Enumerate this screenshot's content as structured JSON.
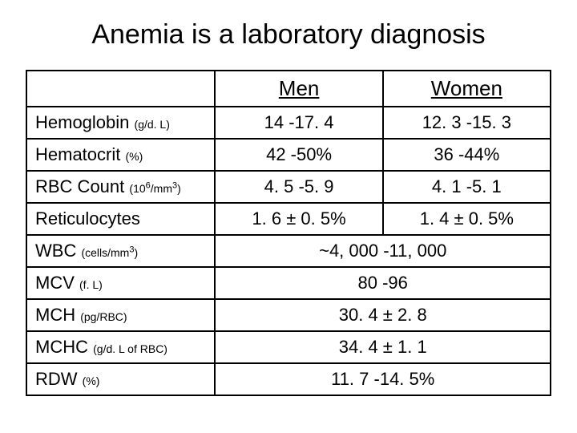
{
  "title": "Anemia is a laboratory diagnosis",
  "headers": {
    "blank": "",
    "men": "Men",
    "women": "Women"
  },
  "rows": {
    "hb": {
      "name": "Hemoglobin",
      "unit": "(g/d. L)",
      "men": "14 -17. 4",
      "women": "12. 3 -15. 3"
    },
    "hct": {
      "name": "Hematocrit",
      "unit": "(%)",
      "men": "42 -50%",
      "women": "36 -44%"
    },
    "rbc": {
      "name": "RBC Count",
      "unit_pre": "(10",
      "unit_sup": "6",
      "unit_mid": "/mm",
      "unit_sup2": "3",
      "unit_post": ")",
      "men": "4. 5 -5. 9",
      "women": "4. 1 -5. 1"
    },
    "retic": {
      "name": "Reticulocytes",
      "unit": "",
      "men": "1. 6 ± 0. 5%",
      "women": "1. 4 ± 0. 5%"
    },
    "wbc": {
      "name": "WBC",
      "unit_pre": "(cells/mm",
      "unit_sup": "3",
      "unit_post": ")",
      "merged": "~4, 000 -11, 000"
    },
    "mcv": {
      "name": "MCV",
      "unit": "(f. L)",
      "merged": "80 -96"
    },
    "mch": {
      "name": "MCH",
      "unit": "(pg/RBC)",
      "merged": "30. 4 ± 2. 8"
    },
    "mchc": {
      "name": "MCHC",
      "unit": "(g/d. L of RBC)",
      "merged": "34. 4 ± 1. 1"
    },
    "rdw": {
      "name": "RDW",
      "unit": "(%)",
      "merged": "11. 7 -14. 5%"
    }
  }
}
